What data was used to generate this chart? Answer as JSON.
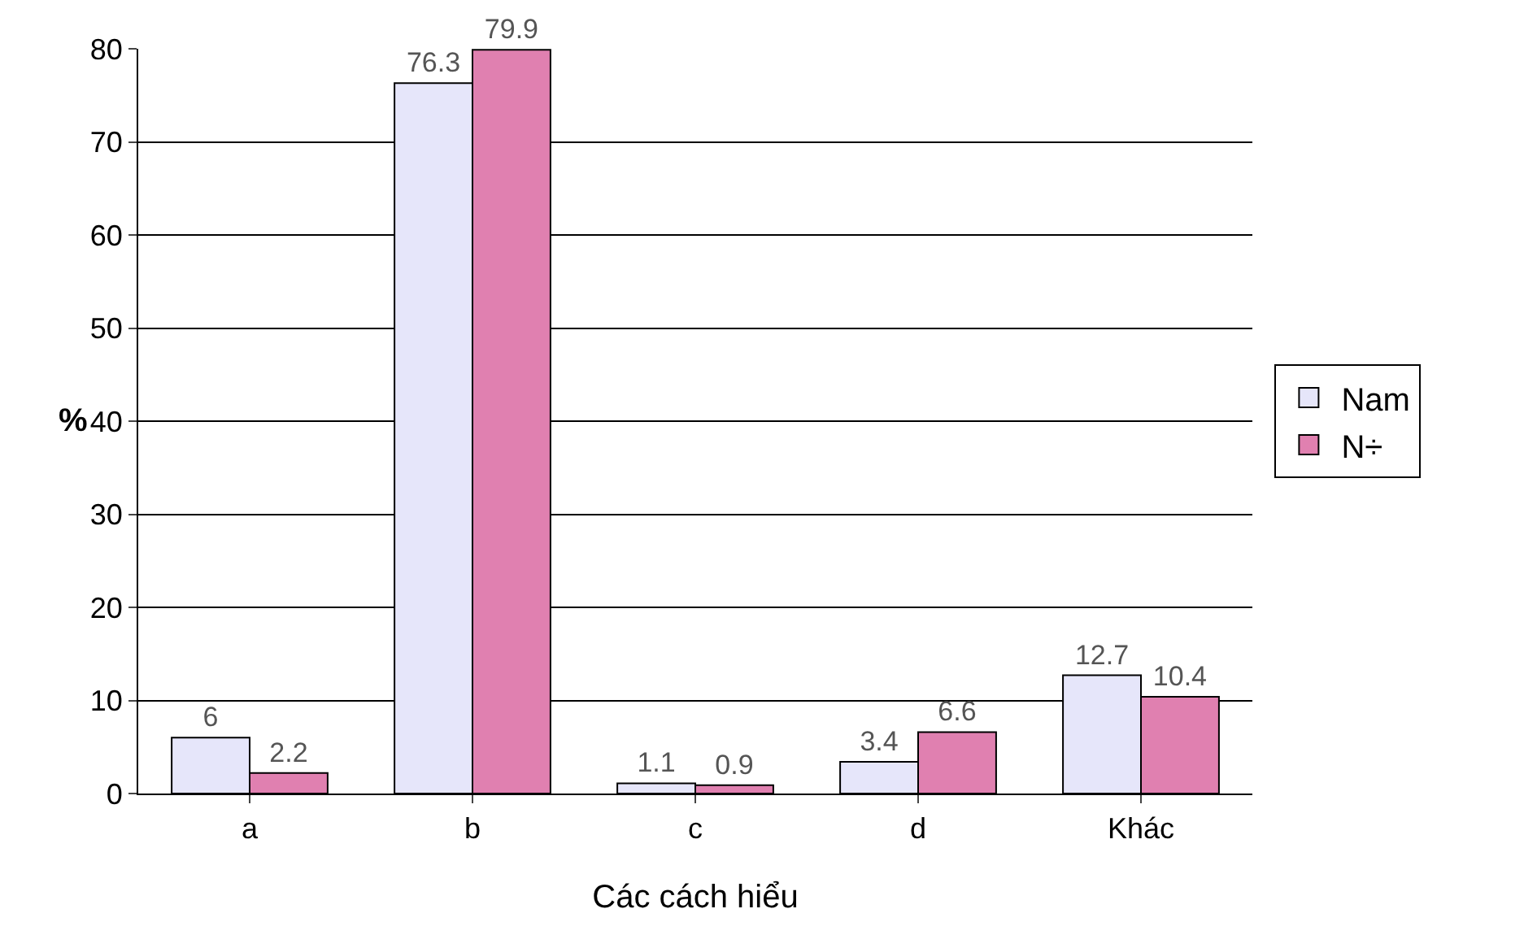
{
  "chart_data": {
    "type": "bar",
    "xlabel": "Các cách hiểu",
    "ylabel": "%",
    "categories": [
      "a",
      "b",
      "c",
      "d",
      "Khác"
    ],
    "series": [
      {
        "name": "Nam",
        "color": "#e6e6fa",
        "values": [
          6,
          76.3,
          1.1,
          3.4,
          12.7
        ]
      },
      {
        "name": "N÷",
        "color": "#e080b0",
        "values": [
          2.2,
          79.9,
          0.9,
          6.6,
          10.4
        ]
      }
    ],
    "ylim": [
      0,
      80
    ],
    "yticks": [
      0,
      10,
      20,
      30,
      40,
      50,
      60,
      70,
      80
    ],
    "grid": "y",
    "legend": "right",
    "data_labels": true
  }
}
